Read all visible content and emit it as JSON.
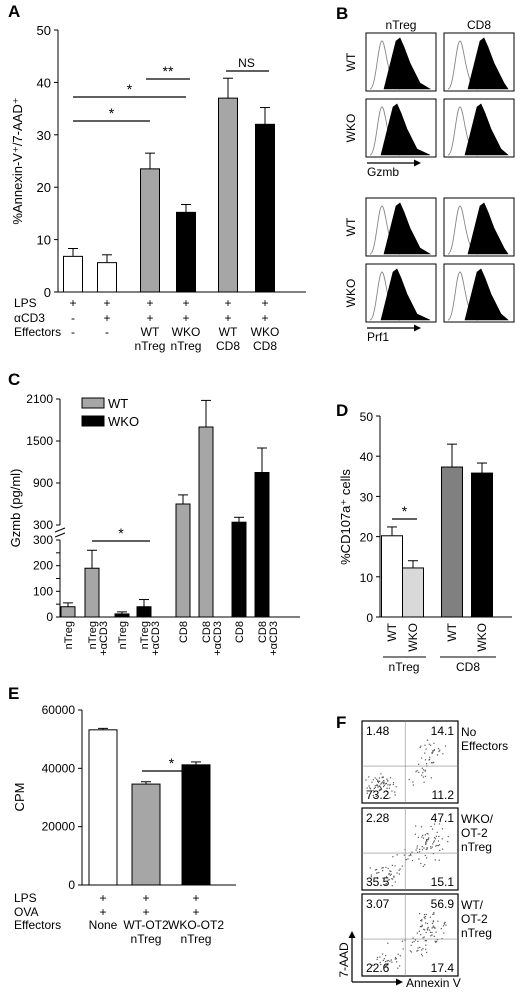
{
  "panel_labels": [
    "A",
    "B",
    "C",
    "D",
    "E",
    "F"
  ],
  "colors": {
    "white": "#ffffff",
    "gray": "#a6a6a6",
    "light_gray": "#d9d9d9",
    "dark_gray": "#808080",
    "black": "#000000"
  },
  "chart_data": [
    {
      "panel": "A",
      "type": "bar",
      "ylabel": "%Annexin-V⁺/7-AAD⁺",
      "ylim": [
        0,
        50
      ],
      "yticks": [
        "0",
        "10",
        "20",
        "30",
        "40",
        "50"
      ],
      "values": [
        6.8,
        5.6,
        23.5,
        15.2,
        37.0,
        32.0
      ],
      "errors": [
        1.5,
        1.5,
        3.0,
        1.5,
        3.8,
        3.2
      ],
      "fills": [
        "white",
        "white",
        "gray",
        "black",
        "gray",
        "black"
      ],
      "row_labels": [
        "LPS",
        "αCD3",
        "Effectors"
      ],
      "row_values": [
        [
          "+",
          "+",
          "+",
          "+",
          "+",
          "+"
        ],
        [
          "-",
          "+",
          "+",
          "+",
          "+",
          "+"
        ],
        [
          "-",
          "-",
          "WT\nnTreg",
          "WKO\nnTreg",
          "WT\nCD8",
          "WKO\nCD8"
        ]
      ],
      "significance": [
        "*",
        "*",
        "**",
        "NS"
      ]
    },
    {
      "panel": "C",
      "type": "bar",
      "ylabel": "Gzmb (pg/ml)",
      "legend": [
        "WT",
        "WKO"
      ],
      "yticks_upper": [
        "300",
        "900",
        "1500",
        "2100"
      ],
      "yticks_lower": [
        "0",
        "50",
        "100",
        "150",
        "200",
        "250",
        "300"
      ],
      "categories": [
        "nTreg",
        "nTreg\n+αCD3",
        "nTreg",
        "nTreg\n+αCD3",
        "CD8",
        "CD8\n+αCD3",
        "CD8",
        "CD8\n+αCD3"
      ],
      "groups": [
        "WT",
        "WT",
        "WKO",
        "WKO",
        "WT",
        "WT",
        "WKO",
        "WKO"
      ],
      "values": [
        40,
        190,
        12,
        40,
        600,
        1700,
        340,
        1050
      ],
      "errors": [
        15,
        70,
        8,
        28,
        130,
        380,
        70,
        350
      ],
      "significance": [
        "*"
      ]
    },
    {
      "panel": "D",
      "type": "bar",
      "ylabel": "%CD107a⁺ cells",
      "ylim": [
        0,
        50
      ],
      "yticks": [
        "0",
        "10",
        "20",
        "30",
        "40",
        "50"
      ],
      "categories": [
        "WT",
        "WKO",
        "WT",
        "WKO"
      ],
      "group_labels": [
        "nTreg",
        "CD8"
      ],
      "values": [
        20.2,
        12.2,
        37.3,
        35.8
      ],
      "errors": [
        2.2,
        1.8,
        5.7,
        2.5
      ],
      "fills": [
        "white",
        "light_gray",
        "dark_gray",
        "black"
      ],
      "significance": [
        "*"
      ]
    },
    {
      "panel": "E",
      "type": "bar",
      "ylabel": "CPM",
      "ylim": [
        0,
        60000
      ],
      "yticks": [
        "0",
        "20000",
        "40000",
        "60000"
      ],
      "values": [
        53200,
        34600,
        41200
      ],
      "errors": [
        500,
        800,
        1000
      ],
      "fills": [
        "white",
        "gray",
        "black"
      ],
      "row_labels": [
        "LPS",
        "OVA",
        "Effectors"
      ],
      "row_values": [
        [
          "+",
          "+",
          "+"
        ],
        [
          "+",
          "+",
          "+"
        ],
        [
          "None",
          "WT-OT2\nnTreg",
          "WKO-OT2\nnTreg"
        ]
      ],
      "significance": [
        "*"
      ]
    }
  ],
  "histograms": {
    "panel": "B",
    "columns": [
      "nTreg",
      "CD8"
    ],
    "rows": [
      "WT",
      "WKO",
      "WT",
      "WKO"
    ],
    "markers": [
      "Gzmb",
      "Prf1"
    ]
  },
  "flow": {
    "panel": "F",
    "xlabel": "Annexin V",
    "ylabel": "7-AAD",
    "plots": [
      {
        "label": "No\nEffectors",
        "q": [
          "1.48",
          "14.1",
          "73.2",
          "11.2"
        ]
      },
      {
        "label": "WKO/\nOT-2\nnTreg",
        "q": [
          "2.28",
          "47.1",
          "35.5",
          "15.1"
        ]
      },
      {
        "label": "WT/\nOT-2\nnTreg",
        "q": [
          "3.07",
          "56.9",
          "22.6",
          "17.4"
        ]
      }
    ]
  }
}
